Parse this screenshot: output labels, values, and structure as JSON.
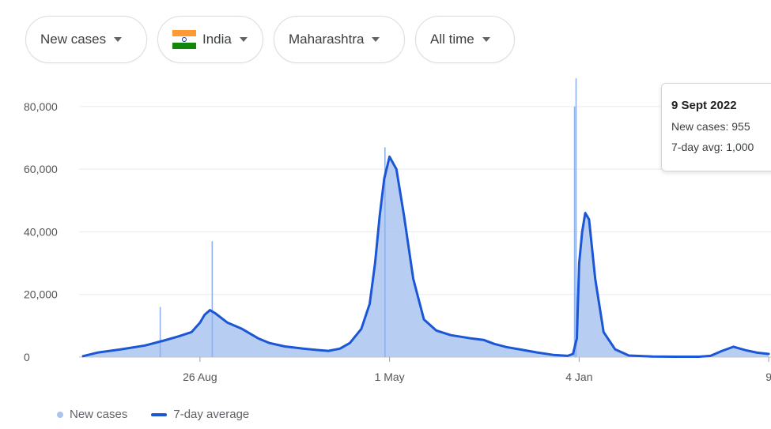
{
  "filters": [
    {
      "label": "New cases"
    },
    {
      "label": "India",
      "flag": true
    },
    {
      "label": "Maharashtra"
    },
    {
      "label": "All time"
    }
  ],
  "tooltip": {
    "date": "9 Sept 2022",
    "new_cases": "New cases: 955",
    "avg": "7-day avg: 1,000"
  },
  "legend": {
    "bars": "New cases",
    "line": "7-day average"
  },
  "colors": {
    "area": "#aac4f0",
    "line": "#1a56d6",
    "grid": "#e8eaed",
    "flag_saffron": "#ff9933",
    "flag_green": "#138808"
  },
  "chart_data": {
    "type": "area",
    "title": "",
    "xlabel": "",
    "ylabel": "",
    "ylim": [
      0,
      85000
    ],
    "yticks": [
      0,
      20000,
      40000,
      60000,
      80000
    ],
    "ytick_labels": [
      "0",
      "20,000",
      "40,000",
      "60,000",
      "80,000"
    ],
    "xticks": [
      {
        "x": "2020-08-26",
        "label": "26 Aug"
      },
      {
        "x": "2021-05-01",
        "label": "1 May"
      },
      {
        "x": "2022-01-04",
        "label": "4 Jan"
      },
      {
        "x": "2022-09-09",
        "label": "9"
      }
    ],
    "xlim": [
      "2020-03-26",
      "2022-09-12"
    ],
    "grid": true,
    "legend_position": "bottom-left",
    "series": [
      {
        "name": "7-day average",
        "x": [
          "2020-03-26",
          "2020-04-15",
          "2020-05-15",
          "2020-06-15",
          "2020-07-10",
          "2020-07-30",
          "2020-08-15",
          "2020-08-26",
          "2020-09-01",
          "2020-09-08",
          "2020-09-15",
          "2020-10-01",
          "2020-10-20",
          "2020-11-10",
          "2020-11-25",
          "2020-12-15",
          "2021-01-05",
          "2021-01-25",
          "2021-02-10",
          "2021-02-25",
          "2021-03-10",
          "2021-03-25",
          "2021-04-05",
          "2021-04-12",
          "2021-04-18",
          "2021-04-24",
          "2021-05-01",
          "2021-05-10",
          "2021-05-20",
          "2021-06-01",
          "2021-06-15",
          "2021-07-01",
          "2021-07-20",
          "2021-08-15",
          "2021-09-01",
          "2021-09-15",
          "2021-10-01",
          "2021-10-20",
          "2021-11-10",
          "2021-12-01",
          "2021-12-20",
          "2021-12-27",
          "2022-01-01",
          "2022-01-04",
          "2022-01-08",
          "2022-01-12",
          "2022-01-17",
          "2022-01-25",
          "2022-02-05",
          "2022-02-20",
          "2022-03-10",
          "2022-04-10",
          "2022-05-10",
          "2022-06-10",
          "2022-06-25",
          "2022-07-10",
          "2022-07-25",
          "2022-08-10",
          "2022-08-25",
          "2022-09-09"
        ],
        "values": [
          300,
          1500,
          2500,
          3700,
          5300,
          6700,
          8000,
          11000,
          13500,
          15000,
          14000,
          11000,
          9000,
          6000,
          4500,
          3400,
          2800,
          2300,
          2000,
          2700,
          4500,
          9000,
          17000,
          30000,
          45000,
          57000,
          64000,
          60000,
          45000,
          25000,
          12000,
          8500,
          7000,
          6000,
          5500,
          4200,
          3200,
          2400,
          1500,
          700,
          400,
          1000,
          6000,
          30000,
          40000,
          46000,
          44000,
          25000,
          8000,
          2500,
          500,
          200,
          120,
          120,
          400,
          2000,
          3300,
          2200,
          1400,
          1000
        ]
      }
    ],
    "spikes": [
      {
        "x": "2020-07-05",
        "value": 16000
      },
      {
        "x": "2020-09-11",
        "value": 37000
      },
      {
        "x": "2021-04-25",
        "value": 67000
      },
      {
        "x": "2021-12-29",
        "value": 80000
      },
      {
        "x": "2021-12-31",
        "value": 89000
      }
    ]
  }
}
